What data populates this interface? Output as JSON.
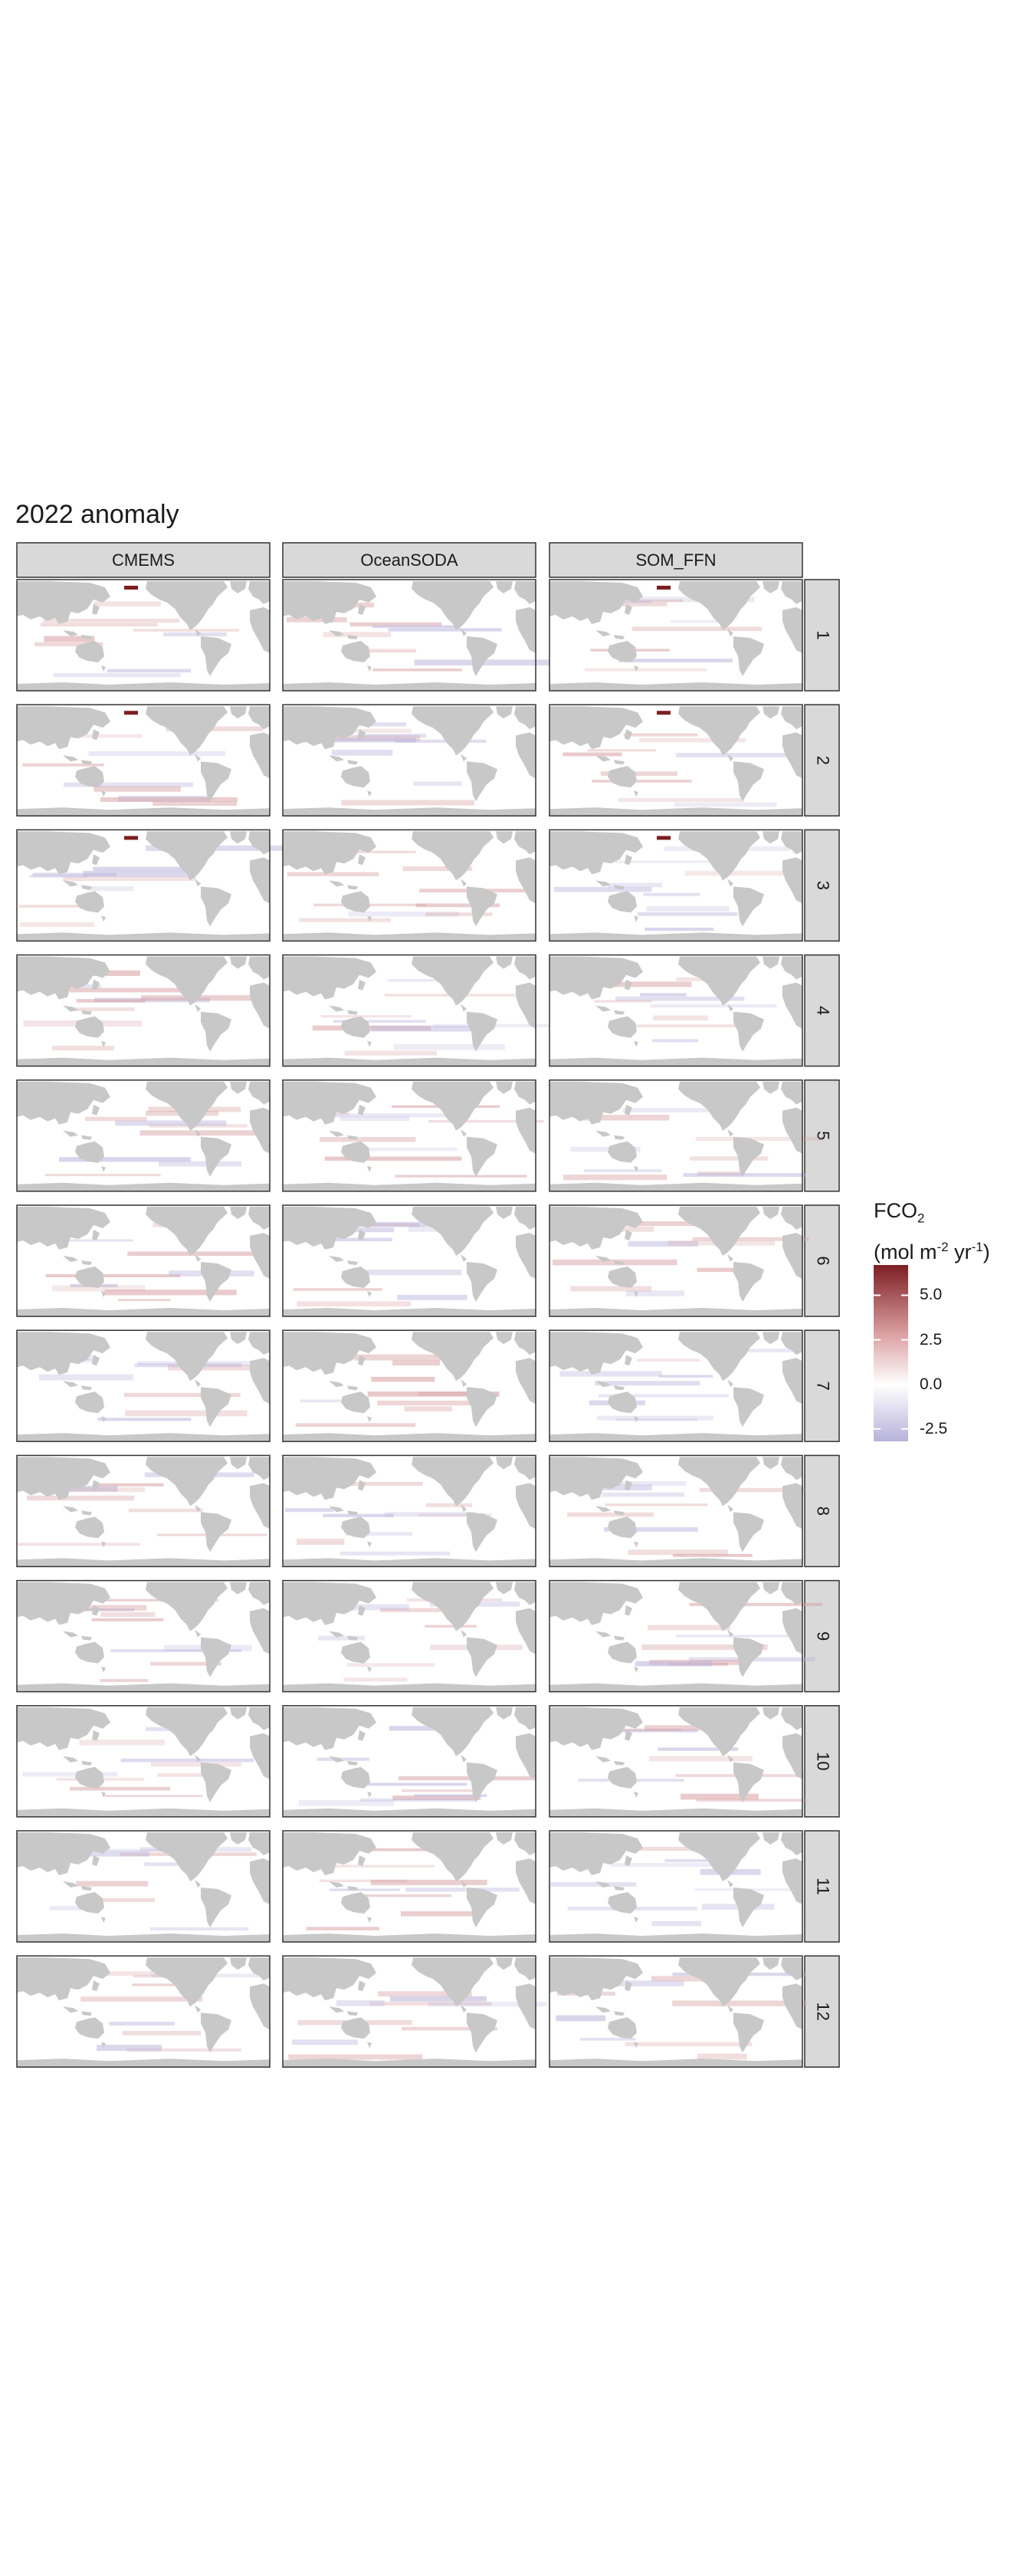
{
  "title": "2022 anomaly",
  "chart_data": {
    "type": "heatmap",
    "title": "2022 anomaly",
    "facet_columns": [
      "CMEMS",
      "OceanSODA",
      "SOM_FFN"
    ],
    "facet_rows": [
      "1",
      "2",
      "3",
      "4",
      "5",
      "6",
      "7",
      "8",
      "9",
      "10",
      "11",
      "12"
    ],
    "colorbar": {
      "title_main": "FCO",
      "title_sub": "2",
      "units_prefix": "(mol m",
      "units_exp1": "-2",
      "units_mid": " yr",
      "units_exp2": "-1",
      "units_suffix": ")",
      "ticks": [
        5.0,
        2.5,
        0.0,
        -2.5
      ],
      "tick_labels": [
        "5.0",
        "2.5",
        "0.0",
        "-2.5"
      ],
      "range": [
        -3.2,
        6.7
      ],
      "colors": {
        "low": "#b7b2da",
        "mid": "#ffffff",
        "high": "#7d1e22"
      }
    },
    "land_color": "#c8c8c8",
    "ocean_color": "#ffffff",
    "strip_color": "#d9d9d9"
  }
}
